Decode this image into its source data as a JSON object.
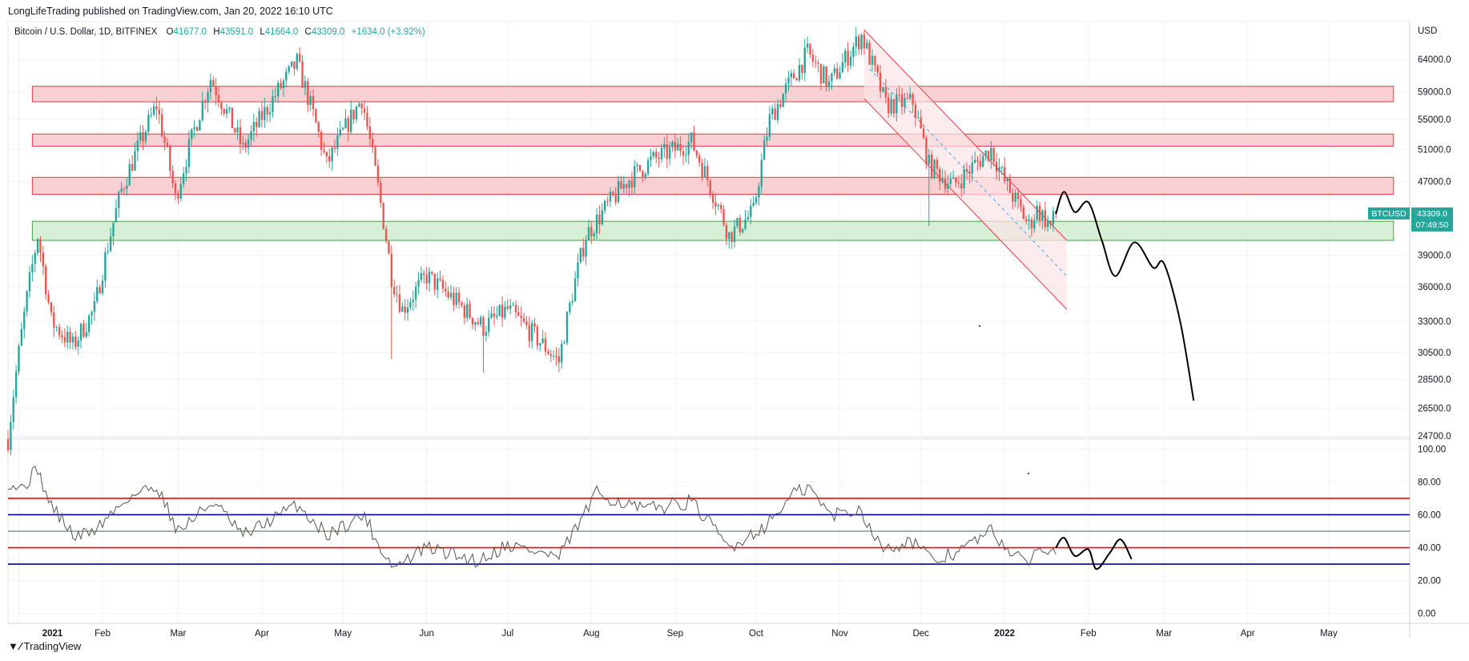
{
  "header": {
    "published": "LongLifeTrading published on TradingView.com, Jan 20, 2022 16:10 UTC"
  },
  "footer": {
    "logo_icon": "tradingview-logo-icon",
    "brand": "TradingView"
  },
  "legend": {
    "symbol": "Bitcoin / U.S. Dollar, 1D, BITFINEX",
    "o_label": "O",
    "o_value": "41677.0",
    "h_label": "H",
    "h_value": "43591.0",
    "l_label": "L",
    "l_value": "41664.0",
    "c_label": "C",
    "c_value": "43309.0",
    "change": "+1634.0 (+3.92%)"
  },
  "price_badge": {
    "symbol": "BTCUSD",
    "price": "43309.0",
    "countdown": "07:49:50"
  },
  "colors": {
    "up": "#26a69a",
    "down": "#ef5350",
    "resistance_fill": "#f8d0d3",
    "resistance_border": "#e53945",
    "support_fill": "#d6efd6",
    "support_border": "#43a047",
    "rsi_line": "#555555",
    "rsi_red": "#ff0000",
    "rsi_blue": "#0000b0",
    "rsi_green": "#2e7d32",
    "grid": "#f0f3fa"
  },
  "chart_data": [
    {
      "type": "candlestick",
      "title": "Bitcoin / U.S. Dollar, 1D, BITFINEX",
      "currency_label": "USD",
      "y_scale": "log",
      "ylim": [
        24700,
        70000
      ],
      "y_ticks": [
        "64000.0",
        "59000.0",
        "55000.0",
        "51000.0",
        "47000.0",
        "39000.0",
        "36000.0",
        "33000.0",
        "30500.0",
        "28500.0",
        "26500.0",
        "24700.0"
      ],
      "x_ticks": [
        "2021",
        "Feb",
        "Mar",
        "Apr",
        "May",
        "Jun",
        "Jul",
        "Aug",
        "Sep",
        "Oct",
        "Nov",
        "Dec",
        "2022",
        "Feb",
        "Mar",
        "Apr",
        "May"
      ],
      "date_range": [
        "2020-12-28",
        "2022-05-31"
      ],
      "anchors": [
        [
          "2020-12-28",
          24500
        ],
        [
          "2021-01-08",
          41000
        ],
        [
          "2021-01-13",
          33000
        ],
        [
          "2021-01-21",
          31000
        ],
        [
          "2021-01-29",
          34000
        ],
        [
          "2021-02-08",
          46000
        ],
        [
          "2021-02-21",
          57000
        ],
        [
          "2021-02-28",
          45000
        ],
        [
          "2021-03-13",
          61000
        ],
        [
          "2021-03-25",
          51000
        ],
        [
          "2021-04-14",
          63500
        ],
        [
          "2021-04-25",
          49000
        ],
        [
          "2021-05-08",
          58000
        ],
        [
          "2021-05-12",
          50000
        ],
        [
          "2021-05-19",
          37000
        ],
        [
          "2021-05-23",
          34000
        ],
        [
          "2021-06-01",
          37000
        ],
        [
          "2021-06-22",
          32500
        ],
        [
          "2021-07-01",
          34000
        ],
        [
          "2021-07-20",
          29800
        ],
        [
          "2021-07-30",
          41000
        ],
        [
          "2021-08-14",
          47000
        ],
        [
          "2021-08-23",
          49500
        ],
        [
          "2021-09-07",
          52000
        ],
        [
          "2021-09-21",
          41000
        ],
        [
          "2021-09-30",
          43500
        ],
        [
          "2021-10-06",
          55000
        ],
        [
          "2021-10-20",
          65000
        ],
        [
          "2021-10-28",
          60000
        ],
        [
          "2021-11-09",
          68000
        ],
        [
          "2021-11-18",
          57000
        ],
        [
          "2021-11-28",
          57500
        ],
        [
          "2021-12-04",
          49000
        ],
        [
          "2021-12-13",
          46500
        ],
        [
          "2021-12-27",
          51000
        ],
        [
          "2022-01-01",
          47000
        ],
        [
          "2022-01-10",
          42000
        ],
        [
          "2022-01-13",
          43800
        ],
        [
          "2022-01-18",
          42000
        ],
        [
          "2022-01-20",
          43309
        ]
      ],
      "wicks": [
        [
          "2021-05-19",
          30000
        ],
        [
          "2021-12-04",
          42000
        ],
        [
          "2021-06-22",
          29000
        ]
      ],
      "resistance_zones": [
        [
          57500,
          59800
        ],
        [
          51400,
          53000
        ],
        [
          45500,
          47500
        ]
      ],
      "support_zone": [
        40500,
        42500
      ],
      "channel": {
        "start": [
          "2021-11-10",
          69000
        ],
        "end": [
          "2022-01-24",
          40500
        ],
        "lower_offset_ratio": 0.84,
        "mid_start": [
          "2021-11-12",
          62500
        ],
        "mid_end": [
          "2022-01-24",
          37000
        ]
      },
      "projection": [
        [
          "2022-01-20",
          43309
        ],
        [
          "2022-01-23",
          45800
        ],
        [
          "2022-01-27",
          43500
        ],
        [
          "2022-02-01",
          44600
        ],
        [
          "2022-02-06",
          40500
        ],
        [
          "2022-02-11",
          37000
        ],
        [
          "2022-02-18",
          40300
        ],
        [
          "2022-02-25",
          37800
        ],
        [
          "2022-03-01",
          38200
        ],
        [
          "2022-03-07",
          33000
        ],
        [
          "2022-03-12",
          27000
        ]
      ],
      "current_price": 43309
    },
    {
      "type": "line",
      "title": "",
      "ylim": [
        -5,
        105
      ],
      "y_ticks": [
        "100.00",
        "80.00",
        "60.00",
        "40.00",
        "20.00",
        "0.00"
      ],
      "levels": [
        {
          "value": 70,
          "color": "red"
        },
        {
          "value": 60,
          "color": "blue"
        },
        {
          "value": 50,
          "color": "green"
        },
        {
          "value": 40,
          "color": "red"
        },
        {
          "value": 30,
          "color": "blue"
        }
      ],
      "anchors": [
        [
          "2020-12-28",
          80
        ],
        [
          "2021-01-02",
          76
        ],
        [
          "2021-01-08",
          88
        ],
        [
          "2021-01-12",
          68
        ],
        [
          "2021-01-22",
          46
        ],
        [
          "2021-01-30",
          52
        ],
        [
          "2021-02-10",
          70
        ],
        [
          "2021-02-21",
          78
        ],
        [
          "2021-03-01",
          50
        ],
        [
          "2021-03-14",
          68
        ],
        [
          "2021-03-25",
          47
        ],
        [
          "2021-04-14",
          66
        ],
        [
          "2021-04-25",
          48
        ],
        [
          "2021-05-09",
          60
        ],
        [
          "2021-05-14",
          42
        ],
        [
          "2021-05-20",
          28
        ],
        [
          "2021-06-01",
          40
        ],
        [
          "2021-06-20",
          32
        ],
        [
          "2021-07-01",
          42
        ],
        [
          "2021-07-20",
          34
        ],
        [
          "2021-08-03",
          73
        ],
        [
          "2021-08-20",
          63
        ],
        [
          "2021-09-07",
          68
        ],
        [
          "2021-09-21",
          40
        ],
        [
          "2021-10-05",
          54
        ],
        [
          "2021-10-15",
          73
        ],
        [
          "2021-10-21",
          76
        ],
        [
          "2021-10-28",
          60
        ],
        [
          "2021-11-09",
          63
        ],
        [
          "2021-11-16",
          40
        ],
        [
          "2021-11-29",
          44
        ],
        [
          "2021-12-05",
          31
        ],
        [
          "2021-12-15",
          38
        ],
        [
          "2021-12-27",
          50
        ],
        [
          "2022-01-08",
          30
        ],
        [
          "2022-01-13",
          38
        ],
        [
          "2022-01-20",
          40
        ]
      ],
      "projection": [
        [
          "2022-01-20",
          40
        ],
        [
          "2022-01-23",
          46
        ],
        [
          "2022-01-27",
          35
        ],
        [
          "2022-02-01",
          39
        ],
        [
          "2022-02-04",
          27
        ],
        [
          "2022-02-09",
          37
        ],
        [
          "2022-02-13",
          45
        ],
        [
          "2022-02-17",
          33
        ]
      ]
    }
  ]
}
